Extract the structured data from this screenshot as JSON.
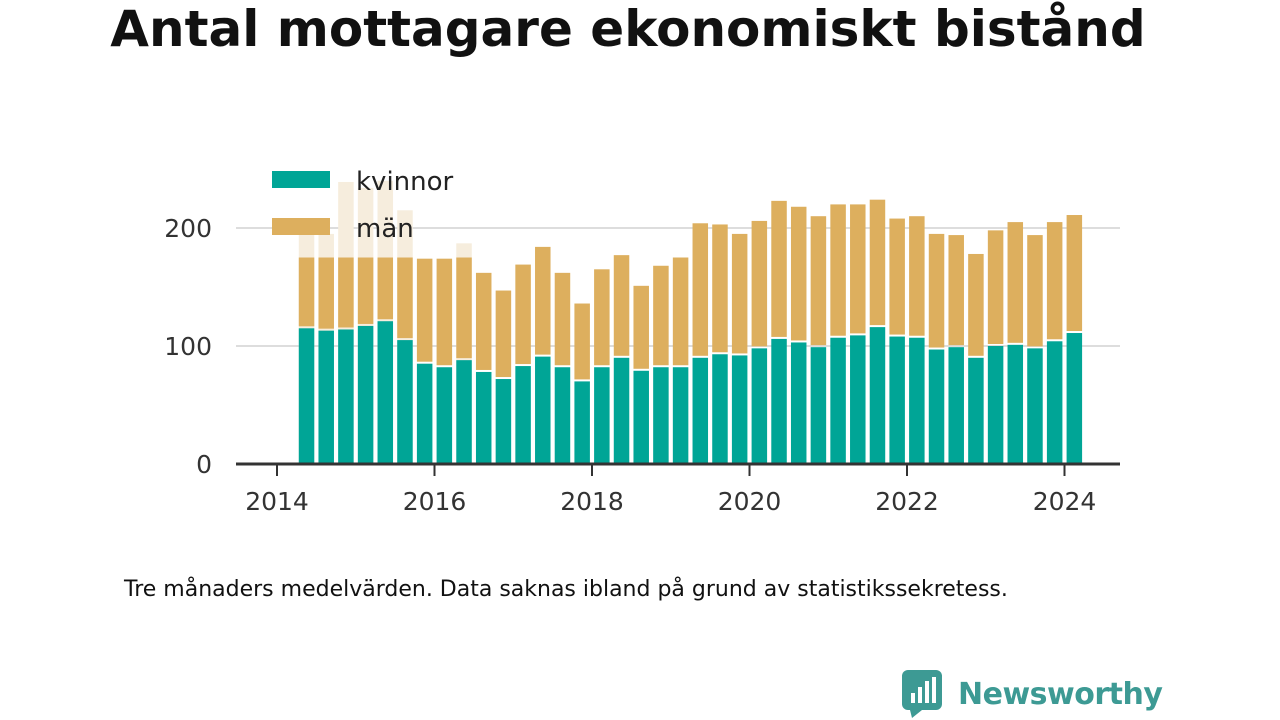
{
  "title": "Antal mottagare ekonomiskt bistånd",
  "footnote": "Tre månaders medelvärden. Data saknas ibland på grund av statistikssekretess.",
  "brand": {
    "name": "Newsworthy",
    "logo_icon": "newsworthy-logo-icon",
    "color": "#3d9a94"
  },
  "colors": {
    "kvinnor": "#00a596",
    "man": "#ddaf5e",
    "faded": "#f6eddd",
    "grid": "#dddddd",
    "axis": "#333333"
  },
  "chart_data": {
    "type": "bar",
    "stacked": true,
    "xlabel": "",
    "ylabel": "",
    "ylim": [
      0,
      270
    ],
    "yticks": [
      0,
      100,
      200
    ],
    "xlim": [
      2014.0,
      2024.95
    ],
    "xticks": [
      2014,
      2016,
      2018,
      2020,
      2022,
      2024
    ],
    "grid": true,
    "legend_position": "top-left",
    "x": [
      2014.375,
      2014.625,
      2014.875,
      2015.125,
      2015.375,
      2015.625,
      2015.875,
      2016.125,
      2016.375,
      2016.625,
      2016.875,
      2017.125,
      2017.375,
      2017.625,
      2017.875,
      2018.125,
      2018.375,
      2018.625,
      2018.875,
      2019.125,
      2019.375,
      2019.625,
      2019.875,
      2020.125,
      2020.375,
      2020.625,
      2020.875,
      2021.125,
      2021.375,
      2021.625,
      2021.875,
      2022.125,
      2022.375,
      2022.625,
      2022.875,
      2023.125,
      2023.375,
      2023.625,
      2023.875,
      2024.125
    ],
    "series": [
      {
        "name": "kvinnor",
        "values": [
          115,
          113,
          114,
          117,
          121,
          105,
          85,
          82,
          88,
          78,
          72,
          83,
          91,
          82,
          70,
          82,
          90,
          79,
          82,
          82,
          90,
          93,
          92,
          98,
          106,
          103,
          99,
          107,
          109,
          116,
          108,
          107,
          97,
          99,
          90,
          100,
          101,
          98,
          104,
          111
        ]
      },
      {
        "name": "män",
        "values": [
          80,
          82,
          125,
          117,
          119,
          110,
          89,
          92,
          99,
          84,
          75,
          86,
          93,
          80,
          66,
          83,
          87,
          72,
          86,
          93,
          114,
          110,
          103,
          108,
          117,
          115,
          111,
          113,
          111,
          108,
          100,
          103,
          98,
          95,
          88,
          98,
          104,
          96,
          101,
          100
        ]
      }
    ],
    "faded_bars": [
      0,
      1,
      2,
      3,
      4,
      5,
      8
    ]
  }
}
